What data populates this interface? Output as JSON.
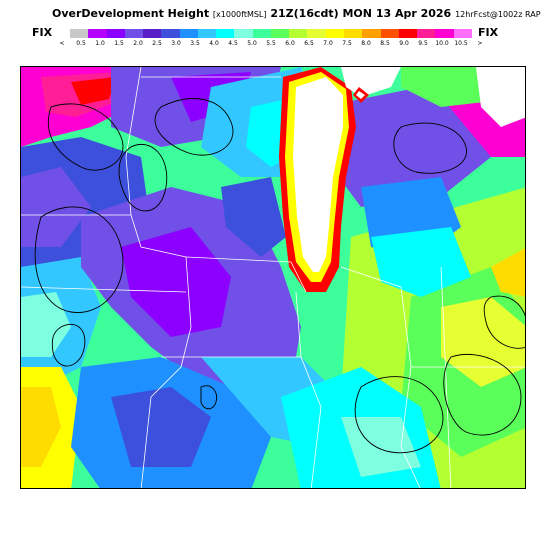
{
  "header": {
    "title_main": "OverDevelopment Height",
    "title_units": "[x1000ftMSL]",
    "title_time": "21Z(16cdt) MON 13 Apr 2026",
    "title_model": "12hrFcst@1002z RAP"
  },
  "legend": {
    "left_label": "FIX",
    "right_label": "FIX",
    "ticks": [
      "<",
      "0.5",
      "1.0",
      "1.5",
      "2.0",
      "2.5",
      "3.0",
      "3.5",
      "4.0",
      "4.5",
      "5.0",
      "5.5",
      "6.0",
      "6.5",
      "7.0",
      "7.5",
      "8.0",
      "8.5",
      "9.0",
      "9.5",
      "10.0",
      "10.5",
      ">"
    ],
    "colors": [
      "#c8c8c8",
      "#b400ff",
      "#8c00ff",
      "#7050e6",
      "#5a1ec8",
      "#3c50dc",
      "#1e90ff",
      "#32c8ff",
      "#00ffff",
      "#7dffe0",
      "#3cff9c",
      "#5aff5a",
      "#b4ff32",
      "#e6ff32",
      "#ffff00",
      "#ffdc00",
      "#ffa000",
      "#ff5000",
      "#ff0000",
      "#ff1e96",
      "#ff00d2",
      "#ff6eff"
    ]
  },
  "map": {
    "name": "overdevelopment-height-field",
    "lake_color": "#ffffff",
    "border_color": "#ffffff",
    "contour_color": "#000000"
  }
}
